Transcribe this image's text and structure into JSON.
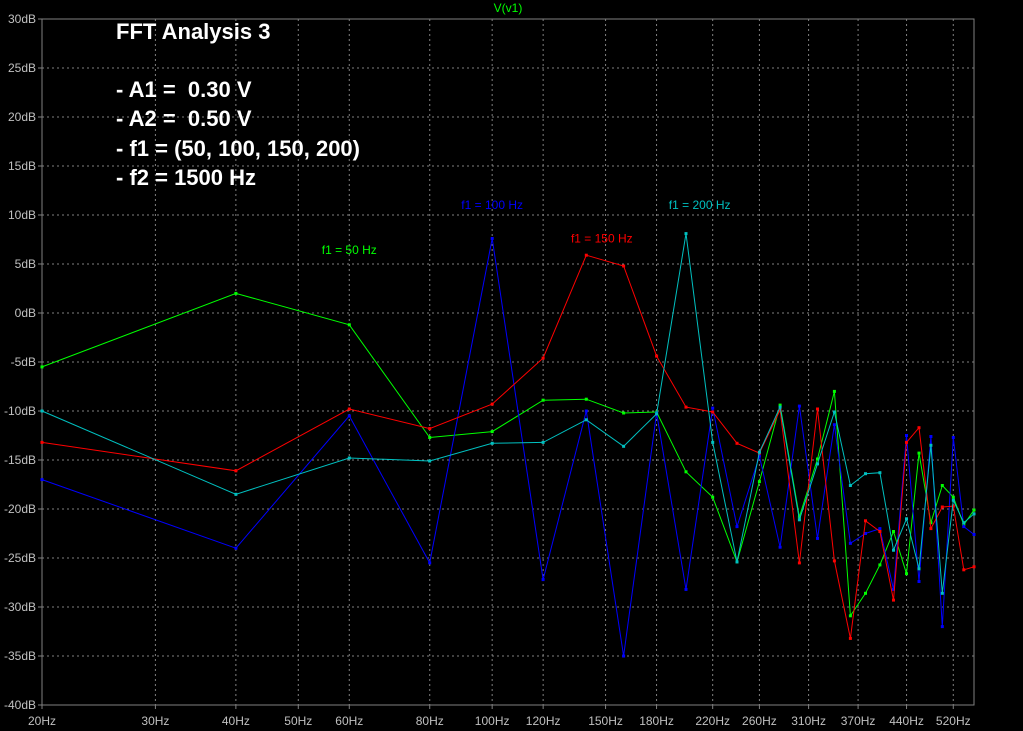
{
  "chart_data": {
    "type": "line",
    "title": "V(v1)",
    "x_scale": "log",
    "xlim": [
      20,
      560
    ],
    "ylim": [
      -40,
      30
    ],
    "grid": true,
    "colors": {
      "background": "#000000",
      "grid": "#808080",
      "axis": "#808080",
      "tick_text": "#c0c0c0",
      "title": "#00ff00"
    },
    "y_ticks": [
      {
        "value": 30,
        "label": "30dB"
      },
      {
        "value": 25,
        "label": "25dB"
      },
      {
        "value": 20,
        "label": "20dB"
      },
      {
        "value": 15,
        "label": "15dB"
      },
      {
        "value": 10,
        "label": "10dB"
      },
      {
        "value": 5,
        "label": "5dB"
      },
      {
        "value": 0,
        "label": "0dB"
      },
      {
        "value": -5,
        "label": "-5dB"
      },
      {
        "value": -10,
        "label": "-10dB"
      },
      {
        "value": -15,
        "label": "-15dB"
      },
      {
        "value": -20,
        "label": "-20dB"
      },
      {
        "value": -25,
        "label": "-25dB"
      },
      {
        "value": -30,
        "label": "-30dB"
      },
      {
        "value": -35,
        "label": "-35dB"
      },
      {
        "value": -40,
        "label": "-40dB"
      }
    ],
    "x_ticks": [
      {
        "value": 20,
        "label": "20Hz"
      },
      {
        "value": 30,
        "label": "30Hz"
      },
      {
        "value": 40,
        "label": "40Hz"
      },
      {
        "value": 50,
        "label": "50Hz"
      },
      {
        "value": 60,
        "label": "60Hz"
      },
      {
        "value": 80,
        "label": "80Hz"
      },
      {
        "value": 100,
        "label": "100Hz"
      },
      {
        "value": 120,
        "label": "120Hz"
      },
      {
        "value": 150,
        "label": "150Hz"
      },
      {
        "value": 180,
        "label": "180Hz"
      },
      {
        "value": 220,
        "label": "220Hz"
      },
      {
        "value": 260,
        "label": "260Hz"
      },
      {
        "value": 310,
        "label": "310Hz"
      },
      {
        "value": 370,
        "label": "370Hz"
      },
      {
        "value": 440,
        "label": "440Hz"
      },
      {
        "value": 520,
        "label": "520Hz"
      }
    ],
    "annotations": [
      {
        "text": "f1 = 50 Hz",
        "x": 60,
        "y": 6.0,
        "color": "#00ff00"
      },
      {
        "text": "f1 = 100 Hz",
        "x": 100,
        "y": 10.6,
        "color": "#0000ff"
      },
      {
        "text": "f1 = 150 Hz",
        "x": 148,
        "y": 7.2,
        "color": "#ff0000"
      },
      {
        "text": "f1 = 200 Hz",
        "x": 210,
        "y": 10.6,
        "color": "#00c0c0"
      }
    ],
    "series": [
      {
        "color": "#00ff00",
        "points": [
          [
            20,
            -5.5
          ],
          [
            40,
            2.0
          ],
          [
            60,
            -1.2
          ],
          [
            80,
            -12.7
          ],
          [
            100,
            -12.1
          ],
          [
            120,
            -8.9
          ],
          [
            140,
            -8.8
          ],
          [
            160,
            -10.2
          ],
          [
            180,
            -10.1
          ],
          [
            200,
            -16.2
          ],
          [
            220,
            -18.8
          ],
          [
            240,
            -25.4
          ],
          [
            260,
            -17.2
          ],
          [
            280,
            -9.4
          ],
          [
            300,
            -20.8
          ],
          [
            320,
            -14.9
          ],
          [
            340,
            -8.0
          ],
          [
            360,
            -30.9
          ],
          [
            380,
            -28.6
          ],
          [
            400,
            -25.7
          ],
          [
            420,
            -22.3
          ],
          [
            440,
            -26.6
          ],
          [
            460,
            -14.3
          ],
          [
            480,
            -21.4
          ],
          [
            500,
            -17.6
          ],
          [
            520,
            -18.8
          ],
          [
            540,
            -21.6
          ],
          [
            560,
            -20.1
          ]
        ]
      },
      {
        "color": "#0000ff",
        "points": [
          [
            20,
            -17.0
          ],
          [
            40,
            -24.0
          ],
          [
            60,
            -10.5
          ],
          [
            80,
            -25.5
          ],
          [
            100,
            7.6
          ],
          [
            120,
            -27.2
          ],
          [
            140,
            -10.0
          ],
          [
            160,
            -35.0
          ],
          [
            180,
            -10.2
          ],
          [
            200,
            -28.2
          ],
          [
            220,
            -9.7
          ],
          [
            240,
            -21.8
          ],
          [
            260,
            -14.6
          ],
          [
            280,
            -23.9
          ],
          [
            300,
            -9.5
          ],
          [
            320,
            -23.0
          ],
          [
            340,
            -11.4
          ],
          [
            360,
            -23.5
          ],
          [
            380,
            -22.5
          ],
          [
            400,
            -22.0
          ],
          [
            420,
            -28.2
          ],
          [
            440,
            -12.5
          ],
          [
            460,
            -27.4
          ],
          [
            480,
            -12.6
          ],
          [
            500,
            -32.0
          ],
          [
            520,
            -12.7
          ],
          [
            540,
            -21.8
          ],
          [
            560,
            -22.6
          ]
        ]
      },
      {
        "color": "#ff0000",
        "points": [
          [
            20,
            -13.2
          ],
          [
            40,
            -16.1
          ],
          [
            60,
            -9.8
          ],
          [
            80,
            -11.8
          ],
          [
            100,
            -9.3
          ],
          [
            120,
            -4.6
          ],
          [
            140,
            5.9
          ],
          [
            160,
            4.8
          ],
          [
            180,
            -4.4
          ],
          [
            200,
            -9.6
          ],
          [
            220,
            -10.1
          ],
          [
            240,
            -13.3
          ],
          [
            260,
            -14.3
          ],
          [
            280,
            -9.9
          ],
          [
            300,
            -25.5
          ],
          [
            320,
            -9.8
          ],
          [
            340,
            -25.3
          ],
          [
            360,
            -33.2
          ],
          [
            380,
            -21.2
          ],
          [
            400,
            -22.3
          ],
          [
            420,
            -29.3
          ],
          [
            440,
            -13.2
          ],
          [
            460,
            -11.7
          ],
          [
            480,
            -22.0
          ],
          [
            500,
            -19.8
          ],
          [
            520,
            -19.7
          ],
          [
            540,
            -26.2
          ],
          [
            560,
            -25.9
          ]
        ]
      },
      {
        "color": "#00c0c0",
        "points": [
          [
            20,
            -10.0
          ],
          [
            40,
            -18.5
          ],
          [
            60,
            -14.8
          ],
          [
            80,
            -15.1
          ],
          [
            100,
            -13.3
          ],
          [
            120,
            -13.2
          ],
          [
            140,
            -10.9
          ],
          [
            160,
            -13.6
          ],
          [
            180,
            -10.3
          ],
          [
            200,
            8.1
          ],
          [
            220,
            -13.2
          ],
          [
            240,
            -25.4
          ],
          [
            260,
            -14.2
          ],
          [
            280,
            -9.6
          ],
          [
            300,
            -21.1
          ],
          [
            320,
            -15.4
          ],
          [
            340,
            -10.1
          ],
          [
            360,
            -17.6
          ],
          [
            380,
            -16.4
          ],
          [
            400,
            -16.3
          ],
          [
            420,
            -24.2
          ],
          [
            440,
            -21.0
          ],
          [
            460,
            -26.1
          ],
          [
            480,
            -13.5
          ],
          [
            500,
            -28.6
          ],
          [
            520,
            -19.1
          ],
          [
            540,
            -21.4
          ],
          [
            560,
            -20.5
          ]
        ]
      }
    ]
  },
  "notes": {
    "heading": "FFT Analysis 3",
    "lines": [
      "- A1 =  0.30 V",
      "- A2 =  0.50 V",
      "- f1 = (50, 100, 150, 200)",
      "- f2 = 1500 Hz"
    ]
  }
}
